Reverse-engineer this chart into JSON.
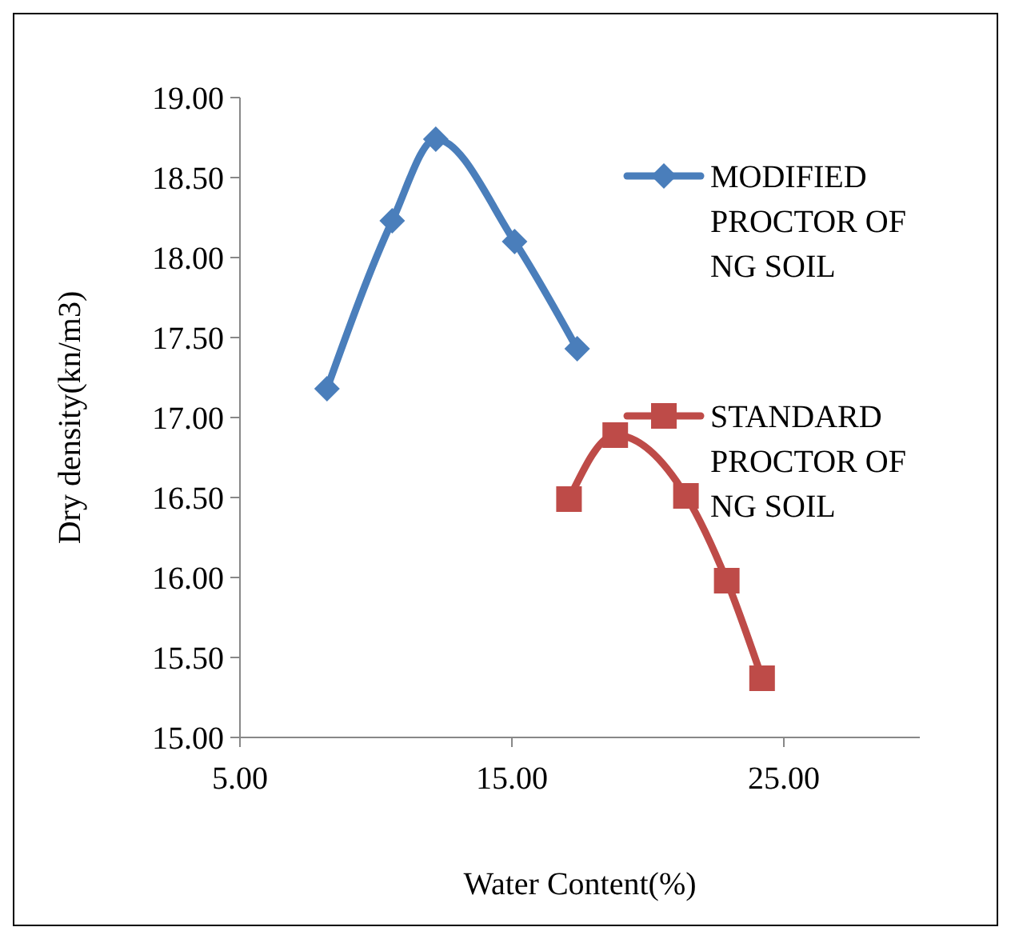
{
  "chart_data": {
    "type": "line",
    "xlabel": "Water Content(%)",
    "ylabel": "Dry density(kn/m3)",
    "xlim": [
      5,
      30
    ],
    "xticks": [
      {
        "value": 5,
        "label": "5.00"
      },
      {
        "value": 15,
        "label": "15.00"
      },
      {
        "value": 25,
        "label": "25.00"
      }
    ],
    "ylim": [
      15,
      19
    ],
    "yticks": [
      {
        "value": 15,
        "label": "15.00"
      },
      {
        "value": 15.5,
        "label": "15.50"
      },
      {
        "value": 16,
        "label": "16.00"
      },
      {
        "value": 16.5,
        "label": "16.50"
      },
      {
        "value": 17,
        "label": "17.00"
      },
      {
        "value": 17.5,
        "label": "17.50"
      },
      {
        "value": 18,
        "label": "18.00"
      },
      {
        "value": 18.5,
        "label": "18.50"
      },
      {
        "value": 19,
        "label": "19.00"
      }
    ],
    "grid": false,
    "legend": "right",
    "series": [
      {
        "name": "MODIFIED PROCTOR OF NG SOIL",
        "color": "#4a7ebb",
        "marker": "diamond",
        "x": [
          8.2,
          10.6,
          12.2,
          15.1,
          17.4
        ],
        "values": [
          17.18,
          18.23,
          18.74,
          18.1,
          17.43
        ]
      },
      {
        "name": "STANDARD PROCTOR OF NG SOIL",
        "color": "#be4b48",
        "marker": "square",
        "x": [
          17.1,
          18.8,
          21.4,
          22.9,
          24.2
        ],
        "values": [
          16.49,
          16.89,
          16.51,
          15.98,
          15.37
        ]
      }
    ]
  }
}
